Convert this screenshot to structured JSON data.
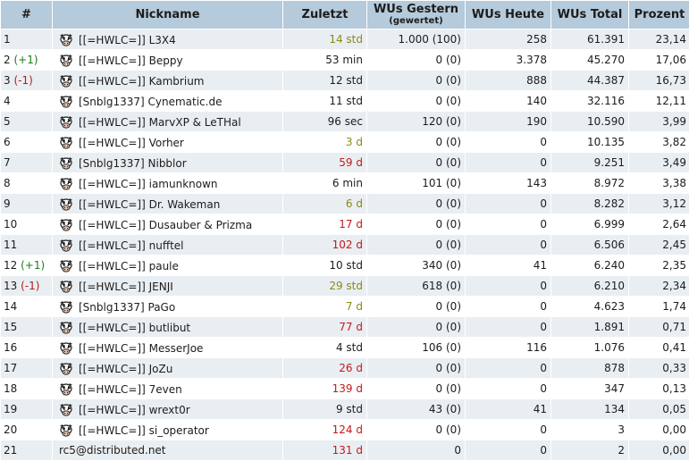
{
  "headers": {
    "rank": "#",
    "nickname": "Nickname",
    "last": "Zuletzt",
    "wus_yesterday": "WUs Gestern",
    "wus_yesterday_sub": "(gewertet)",
    "wus_today": "WUs Heute",
    "wus_total": "WUs Total",
    "percent": "Prozent"
  },
  "colors": {
    "header_bg": "#b5cada",
    "row_alt_bg": "#e9eef2",
    "rank_up": "#1c7a1c",
    "rank_down": "#b31b1b",
    "time_medium": "#8a8a14",
    "time_old": "#c41a1a"
  },
  "rows": [
    {
      "rank": "1",
      "change": "",
      "icon": "cow-icon",
      "nick": "[[=HWLC=]] L3X4",
      "last": "14 std",
      "last_state": "medium",
      "yesterday": "1.000",
      "yesterday_counted": "(100)",
      "today": "258",
      "total": "61.391",
      "percent": "23,14"
    },
    {
      "rank": "2",
      "change": "(+1)",
      "icon": "cow-icon",
      "nick": "[[=HWLC=]] Beppy",
      "last": "53 min",
      "last_state": "fresh",
      "yesterday": "0",
      "yesterday_counted": "(0)",
      "today": "3.378",
      "total": "45.270",
      "percent": "17,06"
    },
    {
      "rank": "3",
      "change": "(-1)",
      "icon": "cow-icon",
      "nick": "[[=HWLC=]] Kambrium",
      "last": "12 std",
      "last_state": "fresh",
      "yesterday": "0",
      "yesterday_counted": "(0)",
      "today": "888",
      "total": "44.387",
      "percent": "16,73"
    },
    {
      "rank": "4",
      "change": "",
      "icon": "cow-icon",
      "nick": "[Snblg1337] Cynematic.de",
      "last": "11 std",
      "last_state": "fresh",
      "yesterday": "0",
      "yesterday_counted": "(0)",
      "today": "140",
      "total": "32.116",
      "percent": "12,11"
    },
    {
      "rank": "5",
      "change": "",
      "icon": "cow-icon",
      "nick": "[[=HWLC=]] MarvXP & LeTHal",
      "last": "96 sec",
      "last_state": "fresh",
      "yesterday": "120",
      "yesterday_counted": "(0)",
      "today": "190",
      "total": "10.590",
      "percent": "3,99"
    },
    {
      "rank": "6",
      "change": "",
      "icon": "cow-icon",
      "nick": "[[=HWLC=]] Vorher",
      "last": "3 d",
      "last_state": "medium",
      "yesterday": "0",
      "yesterday_counted": "(0)",
      "today": "0",
      "total": "10.135",
      "percent": "3,82"
    },
    {
      "rank": "7",
      "change": "",
      "icon": "cow-icon",
      "nick": "[Snblg1337] Nibblor",
      "last": "59 d",
      "last_state": "old",
      "yesterday": "0",
      "yesterday_counted": "(0)",
      "today": "0",
      "total": "9.251",
      "percent": "3,49"
    },
    {
      "rank": "8",
      "change": "",
      "icon": "cow-icon",
      "nick": "[[=HWLC=]] iamunknown",
      "last": "6 min",
      "last_state": "fresh",
      "yesterday": "101",
      "yesterday_counted": "(0)",
      "today": "143",
      "total": "8.972",
      "percent": "3,38"
    },
    {
      "rank": "9",
      "change": "",
      "icon": "cow-icon",
      "nick": "[[=HWLC=]] Dr. Wakeman",
      "last": "6 d",
      "last_state": "medium",
      "yesterday": "0",
      "yesterday_counted": "(0)",
      "today": "0",
      "total": "8.282",
      "percent": "3,12"
    },
    {
      "rank": "10",
      "change": "",
      "icon": "cow-icon",
      "nick": "[[=HWLC=]] Dusauber & Prizma",
      "last": "17 d",
      "last_state": "old",
      "yesterday": "0",
      "yesterday_counted": "(0)",
      "today": "0",
      "total": "6.999",
      "percent": "2,64"
    },
    {
      "rank": "11",
      "change": "",
      "icon": "cow-icon",
      "nick": "[[=HWLC=]] nufftel",
      "last": "102 d",
      "last_state": "old",
      "yesterday": "0",
      "yesterday_counted": "(0)",
      "today": "0",
      "total": "6.506",
      "percent": "2,45"
    },
    {
      "rank": "12",
      "change": "(+1)",
      "icon": "cow-icon",
      "nick": "[[=HWLC=]] paule",
      "last": "10 std",
      "last_state": "fresh",
      "yesterday": "340",
      "yesterday_counted": "(0)",
      "today": "41",
      "total": "6.240",
      "percent": "2,35"
    },
    {
      "rank": "13",
      "change": "(-1)",
      "icon": "cow-icon",
      "nick": "[[=HWLC=]] JENJI",
      "last": "29 std",
      "last_state": "medium",
      "yesterday": "618",
      "yesterday_counted": "(0)",
      "today": "0",
      "total": "6.210",
      "percent": "2,34"
    },
    {
      "rank": "14",
      "change": "",
      "icon": "cow-icon",
      "nick": "[Snblg1337] PaGo",
      "last": "7 d",
      "last_state": "medium",
      "yesterday": "0",
      "yesterday_counted": "(0)",
      "today": "0",
      "total": "4.623",
      "percent": "1,74"
    },
    {
      "rank": "15",
      "change": "",
      "icon": "cow-icon",
      "nick": "[[=HWLC=]] butlibut",
      "last": "77 d",
      "last_state": "old",
      "yesterday": "0",
      "yesterday_counted": "(0)",
      "today": "0",
      "total": "1.891",
      "percent": "0,71"
    },
    {
      "rank": "16",
      "change": "",
      "icon": "cow-icon",
      "nick": "[[=HWLC=]] MesserJoe",
      "last": "4 std",
      "last_state": "fresh",
      "yesterday": "106",
      "yesterday_counted": "(0)",
      "today": "116",
      "total": "1.076",
      "percent": "0,41"
    },
    {
      "rank": "17",
      "change": "",
      "icon": "cow-icon",
      "nick": "[[=HWLC=]] JoZu",
      "last": "26 d",
      "last_state": "old",
      "yesterday": "0",
      "yesterday_counted": "(0)",
      "today": "0",
      "total": "878",
      "percent": "0,33"
    },
    {
      "rank": "18",
      "change": "",
      "icon": "cow-icon",
      "nick": "[[=HWLC=]] 7even",
      "last": "139 d",
      "last_state": "old",
      "yesterday": "0",
      "yesterday_counted": "(0)",
      "today": "0",
      "total": "347",
      "percent": "0,13"
    },
    {
      "rank": "19",
      "change": "",
      "icon": "cow-icon",
      "nick": "[[=HWLC=]] wrext0r",
      "last": "9 std",
      "last_state": "fresh",
      "yesterday": "43",
      "yesterday_counted": "(0)",
      "today": "41",
      "total": "134",
      "percent": "0,05"
    },
    {
      "rank": "20",
      "change": "",
      "icon": "cow-icon",
      "nick": "[[=HWLC=]] si_operator",
      "last": "124 d",
      "last_state": "old",
      "yesterday": "0",
      "yesterday_counted": "(0)",
      "today": "0",
      "total": "3",
      "percent": "0,00"
    },
    {
      "rank": "21",
      "change": "",
      "icon": "",
      "nick": "rc5@distributed.net",
      "last": "131 d",
      "last_state": "old",
      "yesterday": "0",
      "yesterday_counted": "",
      "today": "0",
      "total": "2",
      "percent": "0,00"
    }
  ]
}
